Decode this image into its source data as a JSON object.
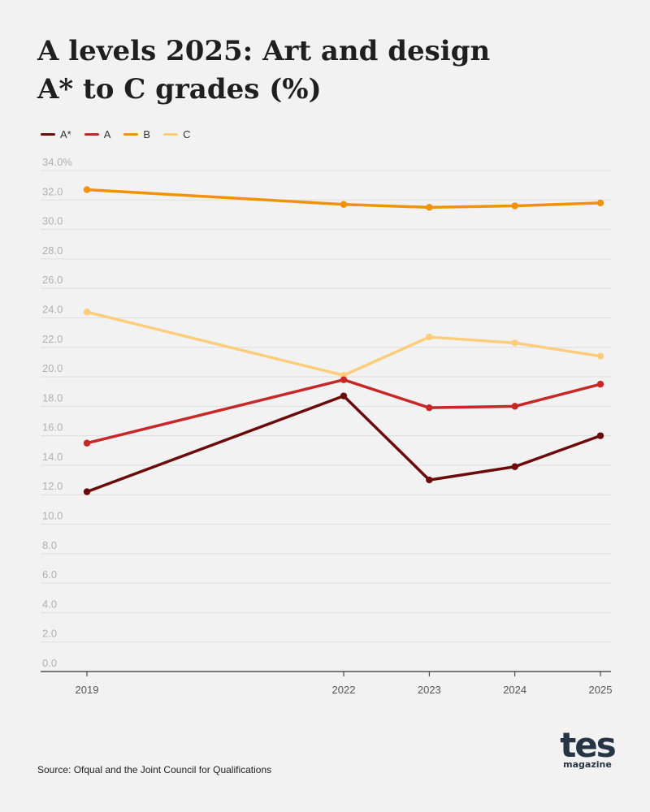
{
  "chart_data": {
    "type": "line",
    "title_lines": [
      "A levels 2025: Art and design",
      "A* to C grades (%)"
    ],
    "xlabel": "",
    "ylabel": "",
    "x": [
      "2019",
      "2022",
      "2023",
      "2024",
      "2025"
    ],
    "x_numeric": [
      2019,
      2022,
      2023,
      2024,
      2025
    ],
    "ylim": [
      0,
      34
    ],
    "yticks": [
      "0.0",
      "2.0",
      "4.0",
      "6.0",
      "8.0",
      "10.0",
      "12.0",
      "14.0",
      "16.0",
      "18.0",
      "20.0",
      "22.0",
      "24.0",
      "26.0",
      "28.0",
      "30.0",
      "32.0",
      "34.0%"
    ],
    "ytick_values": [
      0,
      2,
      4,
      6,
      8,
      10,
      12,
      14,
      16,
      18,
      20,
      22,
      24,
      26,
      28,
      30,
      32,
      34
    ],
    "grid": true,
    "legend_position": "top-left",
    "series": [
      {
        "name": "A*",
        "color": "#6b0a0a",
        "values": [
          12.2,
          18.7,
          13.0,
          13.9,
          16.0
        ]
      },
      {
        "name": "A",
        "color": "#c62828",
        "values": [
          15.5,
          19.8,
          17.9,
          18.0,
          19.5
        ]
      },
      {
        "name": "B",
        "color": "#f0930a",
        "values": [
          32.7,
          31.7,
          31.5,
          31.6,
          31.8
        ]
      },
      {
        "name": "C",
        "color": "#fecd7c",
        "values": [
          24.4,
          20.1,
          22.7,
          22.3,
          21.4
        ]
      }
    ]
  },
  "source": "Source: Ofqual and the Joint Council for Qualifications",
  "logo": {
    "main": "tes",
    "sub": "magazine"
  }
}
